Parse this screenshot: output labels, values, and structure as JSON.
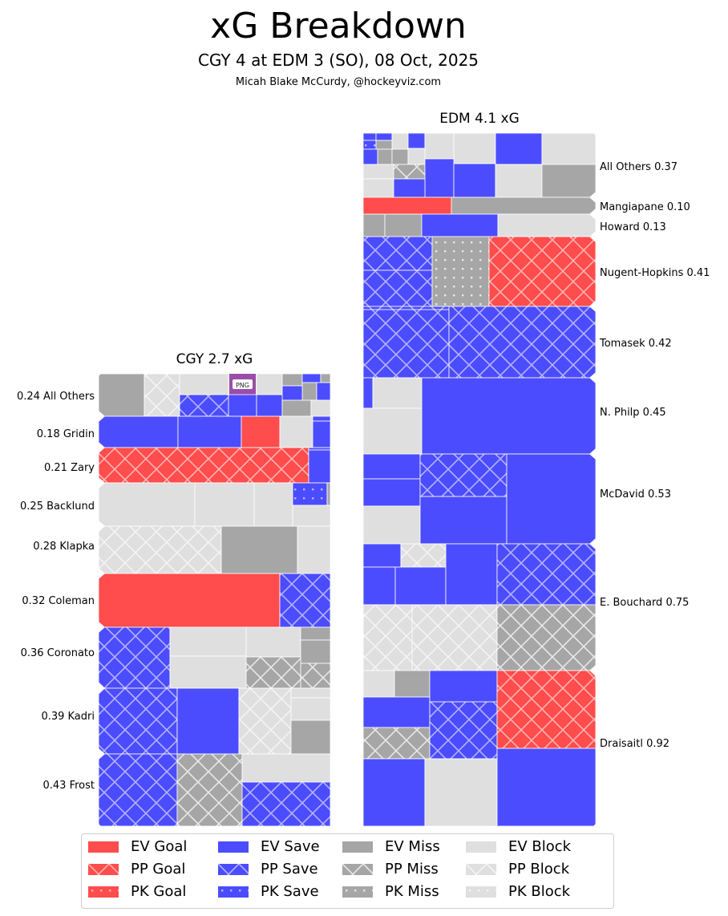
{
  "header": {
    "title": "xG Breakdown",
    "subtitle": "CGY 4 at EDM 3 (SO), 08 Oct, 2025",
    "credit": "Micah Blake McCurdy, @hockeyviz.com"
  },
  "colors": {
    "goal": "#ff4c4c",
    "save": "#4c4cff",
    "miss": "#a6a6a6",
    "block": "#dfdfdf",
    "png_badge": "#9b4ea8"
  },
  "badge": {
    "text": "PNG"
  },
  "chart_data": {
    "type": "treemap",
    "title": "xG Breakdown",
    "legend_position": "bottom",
    "legend": [
      {
        "label": "EV Goal",
        "result": "goal",
        "strength": "EV"
      },
      {
        "label": "EV Save",
        "result": "save",
        "strength": "EV"
      },
      {
        "label": "EV Miss",
        "result": "miss",
        "strength": "EV"
      },
      {
        "label": "EV Block",
        "result": "block",
        "strength": "EV"
      },
      {
        "label": "PP Goal",
        "result": "goal",
        "strength": "PP"
      },
      {
        "label": "PP Save",
        "result": "save",
        "strength": "PP"
      },
      {
        "label": "PP Miss",
        "result": "miss",
        "strength": "PP"
      },
      {
        "label": "PP Block",
        "result": "block",
        "strength": "PP"
      },
      {
        "label": "PK Goal",
        "result": "goal",
        "strength": "PK"
      },
      {
        "label": "PK Save",
        "result": "save",
        "strength": "PK"
      },
      {
        "label": "PK Miss",
        "result": "miss",
        "strength": "PK"
      },
      {
        "label": "PK Block",
        "result": "block",
        "strength": "PK"
      }
    ],
    "teams": [
      {
        "team": "CGY",
        "total_xg": 2.7,
        "heading": "CGY 2.7 xG",
        "players": [
          {
            "label": "0.24 All Others",
            "name": "All Others",
            "xg": 0.24
          },
          {
            "label": "0.18 Gridin",
            "name": "Gridin",
            "xg": 0.18
          },
          {
            "label": "0.21 Zary",
            "name": "Zary",
            "xg": 0.21
          },
          {
            "label": "0.25 Backlund",
            "name": "Backlund",
            "xg": 0.25
          },
          {
            "label": "0.28 Klapka",
            "name": "Klapka",
            "xg": 0.28
          },
          {
            "label": "0.32 Coleman",
            "name": "Coleman",
            "xg": 0.32
          },
          {
            "label": "0.36 Coronato",
            "name": "Coronato",
            "xg": 0.36
          },
          {
            "label": "0.39 Kadri",
            "name": "Kadri",
            "xg": 0.39
          },
          {
            "label": "0.43 Frost",
            "name": "Frost",
            "xg": 0.43
          }
        ]
      },
      {
        "team": "EDM",
        "total_xg": 4.1,
        "heading": "EDM 4.1 xG",
        "players": [
          {
            "label": "All Others 0.37",
            "name": "All Others",
            "xg": 0.37
          },
          {
            "label": "Mangiapane 0.10",
            "name": "Mangiapane",
            "xg": 0.1
          },
          {
            "label": "Howard 0.13",
            "name": "Howard",
            "xg": 0.13
          },
          {
            "label": "Nugent-Hopkins 0.41",
            "name": "Nugent-Hopkins",
            "xg": 0.41
          },
          {
            "label": "Tomasek 0.42",
            "name": "Tomasek",
            "xg": 0.42
          },
          {
            "label": "N. Philp 0.45",
            "name": "N. Philp",
            "xg": 0.45
          },
          {
            "label": "McDavid 0.53",
            "name": "McDavid",
            "xg": 0.53
          },
          {
            "label": "E. Bouchard 0.75",
            "name": "E. Bouchard",
            "xg": 0.75
          },
          {
            "label": "Draisaitl 0.92",
            "name": "Draisaitl",
            "xg": 0.92
          }
        ]
      }
    ]
  }
}
